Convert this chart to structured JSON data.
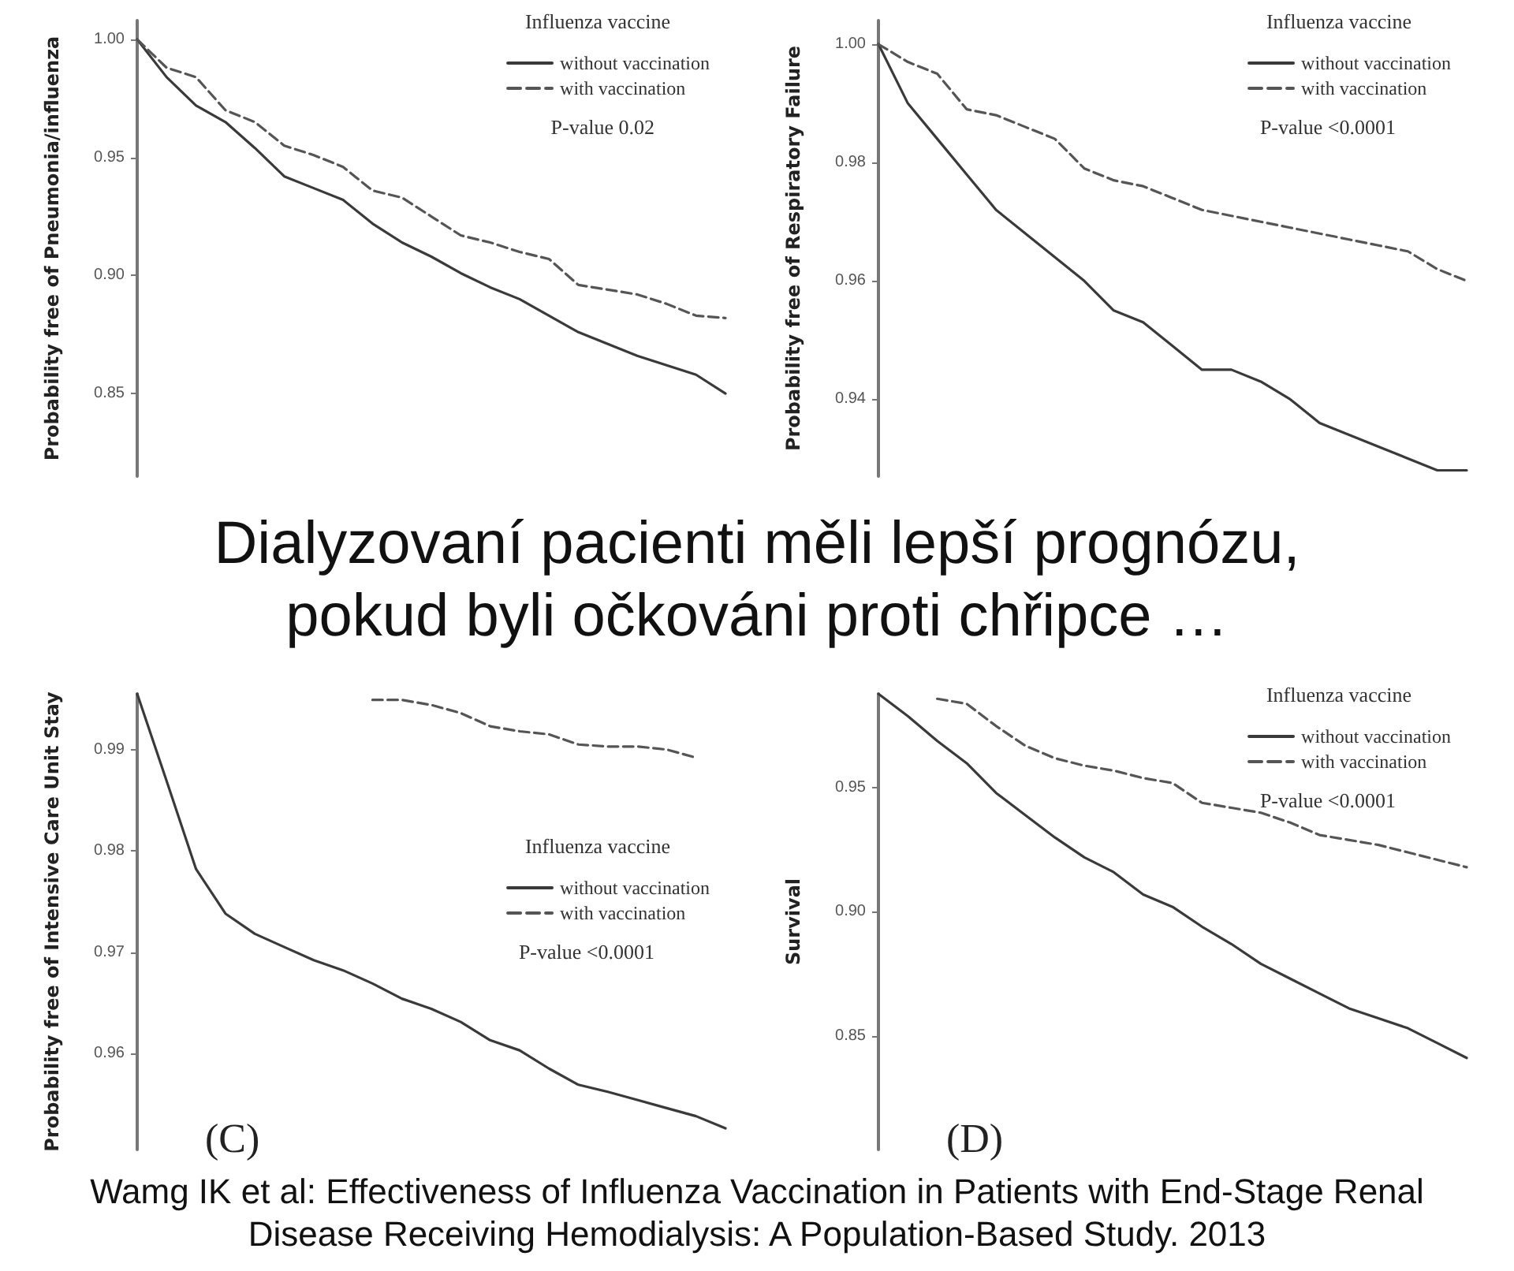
{
  "chart_data": [
    {
      "type": "line",
      "ylabel": "Probability free of Pneumonia/influenza",
      "legend_title": "Influenza vaccine",
      "legend": "top right",
      "marker": "none",
      "grid": false,
      "tick_labels": "y",
      "annotations": [
        "P-value 0.02"
      ],
      "categories": [
        null,
        null,
        null,
        null,
        null,
        null,
        null,
        null,
        null,
        null,
        null,
        null,
        null,
        null,
        null,
        null,
        null,
        null,
        null,
        null,
        null
      ],
      "ylim": [
        0.815,
        1.008
      ],
      "yticks": [
        {
          "value": 0.85,
          "label": "0.85"
        },
        {
          "value": 0.9,
          "label": "0.90"
        },
        {
          "value": 0.95,
          "label": "0.95"
        },
        {
          "value": 1,
          "label": "1.00"
        }
      ],
      "series": [
        {
          "name": "without vaccination",
          "color": "#3a3a3a",
          "line_style": "solid",
          "values": [
            1.0,
            0.984,
            0.972,
            0.965,
            0.954,
            0.942,
            0.937,
            0.932,
            0.922,
            0.914,
            0.908,
            0.901,
            0.895,
            0.89,
            0.883,
            0.876,
            0.871,
            0.866,
            0.862,
            0.858,
            0.85
          ]
        },
        {
          "name": "with vaccination",
          "color": "#555555",
          "line_style": "dashed",
          "values": [
            1.0,
            0.988,
            0.984,
            0.97,
            0.965,
            0.955,
            0.951,
            0.946,
            0.936,
            0.933,
            0.925,
            0.917,
            0.914,
            0.91,
            0.907,
            0.896,
            0.894,
            0.892,
            0.888,
            0.883,
            0.882
          ]
        }
      ]
    },
    {
      "type": "line",
      "ylabel": "Probability free of Respiratory Failure",
      "legend_title": "Influenza vaccine",
      "legend": "top right",
      "marker": "none",
      "grid": false,
      "tick_labels": "y",
      "annotations": [
        "P-value <0.0001"
      ],
      "categories": [
        null,
        null,
        null,
        null,
        null,
        null,
        null,
        null,
        null,
        null,
        null,
        null,
        null,
        null,
        null,
        null,
        null,
        null,
        null,
        null,
        null
      ],
      "ylim": [
        0.927,
        1.004
      ],
      "yticks": [
        {
          "value": 0.94,
          "label": "0.94"
        },
        {
          "value": 0.96,
          "label": "0.96"
        },
        {
          "value": 0.98,
          "label": "0.98"
        },
        {
          "value": 1,
          "label": "1.00"
        }
      ],
      "series": [
        {
          "name": "without vaccination",
          "color": "#3a3a3a",
          "line_style": "solid",
          "values": [
            1.0,
            0.99,
            0.984,
            0.978,
            0.972,
            0.968,
            0.964,
            0.96,
            0.955,
            0.953,
            0.949,
            0.945,
            0.945,
            0.943,
            0.94,
            0.936,
            0.934,
            0.932,
            0.93,
            0.928,
            0.928
          ]
        },
        {
          "name": "with vaccination",
          "color": "#555555",
          "line_style": "dashed",
          "values": [
            1.0,
            0.997,
            0.995,
            0.989,
            0.988,
            0.986,
            0.984,
            0.979,
            0.977,
            0.976,
            0.974,
            0.972,
            0.971,
            0.97,
            0.969,
            0.968,
            0.967,
            0.966,
            0.965,
            0.962,
            0.96
          ]
        }
      ]
    },
    {
      "type": "other",
      "title": "Dialyzovaní pacienti měli lepší prognózu, pokud byli očkováni proti chřipce …"
    },
    {
      "type": "line",
      "ylabel": "Probability free of Intensive Care Unit Stay",
      "legend_title": "Influenza vaccine",
      "legend": "right",
      "marker": "none",
      "grid": false,
      "tick_labels": "y",
      "annotations": [
        "P-value <0.0001",
        "(C)"
      ],
      "categories": [
        null,
        null,
        null,
        null,
        null,
        null,
        null,
        null,
        null,
        null,
        null,
        null,
        null,
        null,
        null,
        null,
        null,
        null,
        null,
        null,
        null
      ],
      "ylim": [
        0.9505,
        0.9955
      ],
      "yticks": [
        {
          "value": 0.96,
          "label": "0.96"
        },
        {
          "value": 0.97,
          "label": "0.97"
        },
        {
          "value": 0.98,
          "label": "0.98"
        },
        {
          "value": 0.99,
          "label": "0.99"
        }
      ],
      "series": [
        {
          "name": "without vaccination",
          "color": "#3a3a3a",
          "line_style": "solid",
          "values": [
            0.9955,
            0.9869,
            0.9782,
            0.9738,
            0.9718,
            0.9705,
            0.9692,
            0.9682,
            0.9669,
            0.9654,
            0.9644,
            0.9631,
            0.9613,
            0.9603,
            0.9585,
            0.9569,
            0.9562,
            0.9554,
            0.9546,
            0.9538,
            0.9526
          ]
        },
        {
          "name": "with vaccination",
          "color": "#555555",
          "line_style": "dashed",
          "values": [
            null,
            null,
            null,
            null,
            null,
            null,
            null,
            null,
            0.9949,
            0.9949,
            0.9944,
            0.9936,
            0.9923,
            0.9918,
            0.9915,
            0.9905,
            0.9903,
            0.9903,
            0.99,
            0.9892,
            null
          ]
        }
      ]
    },
    {
      "type": "line",
      "ylabel": "Survival",
      "legend_title": "Influenza vaccine",
      "legend": "top right",
      "marker": "none",
      "grid": false,
      "tick_labels": "y",
      "annotations": [
        "P-value <0.0001",
        "(D)"
      ],
      "categories": [
        null,
        null,
        null,
        null,
        null,
        null,
        null,
        null,
        null,
        null,
        null,
        null,
        null,
        null,
        null,
        null,
        null,
        null,
        null,
        null,
        null
      ],
      "ylim": [
        0.804,
        0.988
      ],
      "yticks": [
        {
          "value": 0.85,
          "label": "0.85"
        },
        {
          "value": 0.9,
          "label": "0.90"
        },
        {
          "value": 0.95,
          "label": "0.95"
        }
      ],
      "series": [
        {
          "name": "without vaccination",
          "color": "#3a3a3a",
          "line_style": "solid",
          "values": [
            0.988,
            0.979,
            0.969,
            0.96,
            0.948,
            0.939,
            0.93,
            0.922,
            0.916,
            0.907,
            0.902,
            0.894,
            0.887,
            0.879,
            0.873,
            0.867,
            0.861,
            0.857,
            0.853,
            0.847,
            0.841
          ]
        },
        {
          "name": "with vaccination",
          "color": "#555555",
          "line_style": "dashed",
          "values": [
            null,
            null,
            0.986,
            0.984,
            0.975,
            0.967,
            0.962,
            0.959,
            0.957,
            0.954,
            0.952,
            0.944,
            0.942,
            0.94,
            0.936,
            0.931,
            0.929,
            0.927,
            0.924,
            0.921,
            0.918
          ]
        }
      ]
    },
    {
      "type": "other",
      "annotations": [
        "Wamg IK et al: Effectiveness of Influenza Vaccination in Patients with End-Stage Renal Disease Receiving Hemodialysis: A Population-Based Study. 2013"
      ]
    }
  ]
}
